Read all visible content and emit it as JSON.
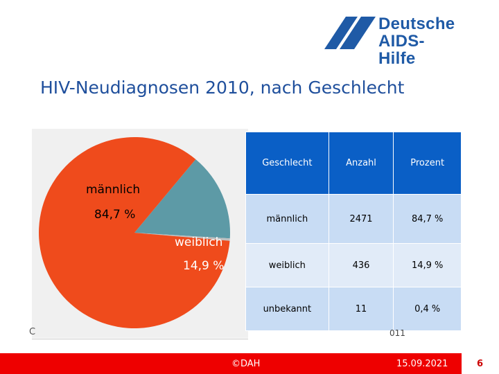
{
  "logo": {
    "line1": "Deutsche",
    "line2": "AIDS-Hilfe",
    "color": "#1f5aa6"
  },
  "title": "HIV-Neudiagnosen 2010, nach Geschlecht",
  "chart_data": {
    "type": "pie",
    "title": "HIV-Neudiagnosen 2010, nach Geschlecht",
    "labels": [
      "männlich",
      "weiblich",
      "unbekannt"
    ],
    "values": [
      84.7,
      14.9,
      0.4
    ],
    "display_labels": [
      {
        "name": "männlich",
        "percent": "84,7 %"
      },
      {
        "name": "weiblich",
        "percent": "14,9 %"
      }
    ],
    "colors": [
      "#ef4b1c",
      "#5d9aa6",
      "#c0c0c0"
    ]
  },
  "table": {
    "headers": [
      "Geschlecht",
      "Anzahl",
      "Prozent"
    ],
    "rows": [
      [
        "männlich",
        "2471",
        "84,7 %"
      ],
      [
        "weiblich",
        "436",
        "14,9 %"
      ],
      [
        "unbekannt",
        "11",
        "0,4 %"
      ]
    ]
  },
  "clipped": {
    "left_char": "C",
    "source_fragment": "011"
  },
  "footer": {
    "copyright": "©DAH",
    "date": "15.09.2021",
    "page": "6",
    "bar_color": "#ee0000"
  }
}
